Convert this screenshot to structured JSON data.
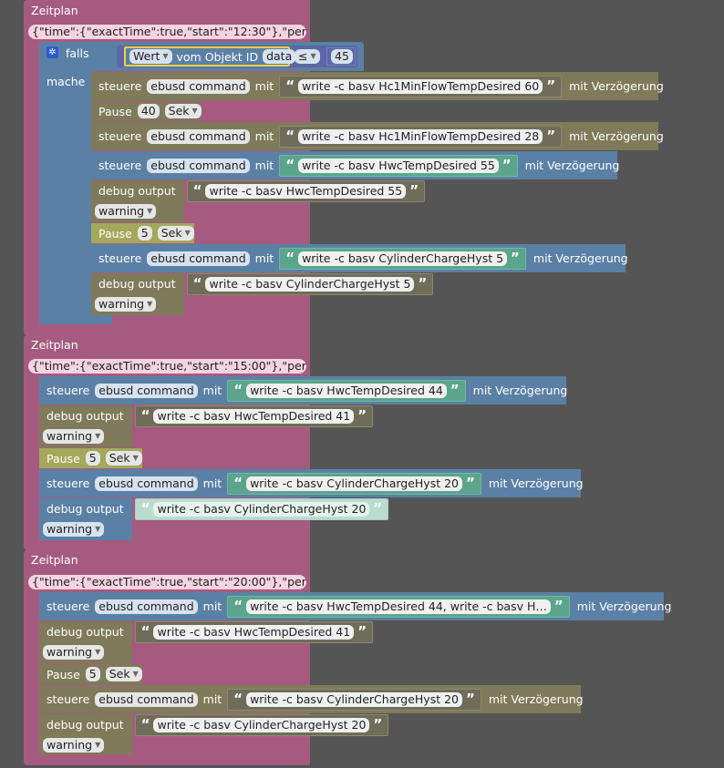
{
  "schedules": [
    {
      "title": "Zeitplan",
      "config": "{\"time\":{\"exactTime\":true,\"start\":\"12:30\"},\"peri…",
      "if_block": {
        "falls_label": "falls",
        "mache_label": "mache",
        "value_label": "Wert",
        "from_label": "vom Objekt ID",
        "object_id": "data",
        "operator": "≤",
        "number": "45"
      },
      "steps": [
        {
          "kind": "control",
          "verb": "steuere",
          "target": "ebusd command",
          "with": "mit",
          "value": "write -c basv Hc1MinFlowTempDesired 60",
          "delay": "mit Verzögerung"
        },
        {
          "kind": "pause",
          "label": "Pause",
          "value": "40",
          "unit": "Sek"
        },
        {
          "kind": "control",
          "verb": "steuere",
          "target": "ebusd command",
          "with": "mit",
          "value": "write -c basv Hc1MinFlowTempDesired 28",
          "delay": "mit Verzögerung"
        },
        {
          "kind": "control",
          "verb": "steuere",
          "target": "ebusd command",
          "with": "mit",
          "value": "write -c basv HwcTempDesired 55",
          "delay": "mit Verzögerung"
        },
        {
          "kind": "debug",
          "label": "debug output",
          "value": "write -c basv HwcTempDesired 55",
          "level": "warning"
        },
        {
          "kind": "pause",
          "label": "Pause",
          "value": "5",
          "unit": "Sek"
        },
        {
          "kind": "control",
          "verb": "steuere",
          "target": "ebusd command",
          "with": "mit",
          "value": "write -c basv CylinderChargeHyst 5",
          "delay": "mit Verzögerung"
        },
        {
          "kind": "debug",
          "label": "debug output",
          "value": "write -c basv CylinderChargeHyst 5",
          "level": "warning"
        }
      ]
    },
    {
      "title": "Zeitplan",
      "config": "{\"time\":{\"exactTime\":true,\"start\":\"15:00\"},\"peri…",
      "steps": [
        {
          "kind": "control",
          "verb": "steuere",
          "target": "ebusd command",
          "with": "mit",
          "value": "write -c basv HwcTempDesired 44",
          "delay": "mit Verzögerung"
        },
        {
          "kind": "debug",
          "label": "debug output",
          "value": "write -c basv HwcTempDesired 41",
          "level": "warning"
        },
        {
          "kind": "pause",
          "label": "Pause",
          "value": "5",
          "unit": "Sek"
        },
        {
          "kind": "control",
          "verb": "steuere",
          "target": "ebusd command",
          "with": "mit",
          "value": "write -c basv CylinderChargeHyst 20",
          "delay": "mit Verzögerung"
        },
        {
          "kind": "debug",
          "label": "debug output",
          "value": "write -c basv CylinderChargeHyst 20",
          "level": "warning"
        }
      ]
    },
    {
      "title": "Zeitplan",
      "config": "{\"time\":{\"exactTime\":true,\"start\":\"20:00\"},\"peri…",
      "steps": [
        {
          "kind": "control",
          "verb": "steuere",
          "target": "ebusd command",
          "with": "mit",
          "value": "write -c basv HwcTempDesired 44, write -c basv H…",
          "delay": "mit Verzögerung"
        },
        {
          "kind": "debug",
          "label": "debug output",
          "value": "write -c basv HwcTempDesired 41",
          "level": "warning"
        },
        {
          "kind": "pause",
          "label": "Pause",
          "value": "5",
          "unit": "Sek"
        },
        {
          "kind": "control",
          "verb": "steuere",
          "target": "ebusd command",
          "with": "mit",
          "value": "write -c basv CylinderChargeHyst 20",
          "delay": "mit Verzögerung"
        },
        {
          "kind": "debug",
          "label": "debug output",
          "value": "write -c basv CylinderChargeHyst 20",
          "level": "warning"
        }
      ]
    }
  ],
  "colors": {
    "background": "#555555",
    "schedule": "#a55b80",
    "control": "#5b80a5",
    "debug": "#7f7a59",
    "pause": "#a3a85b",
    "string_green": "#5ba58c"
  }
}
